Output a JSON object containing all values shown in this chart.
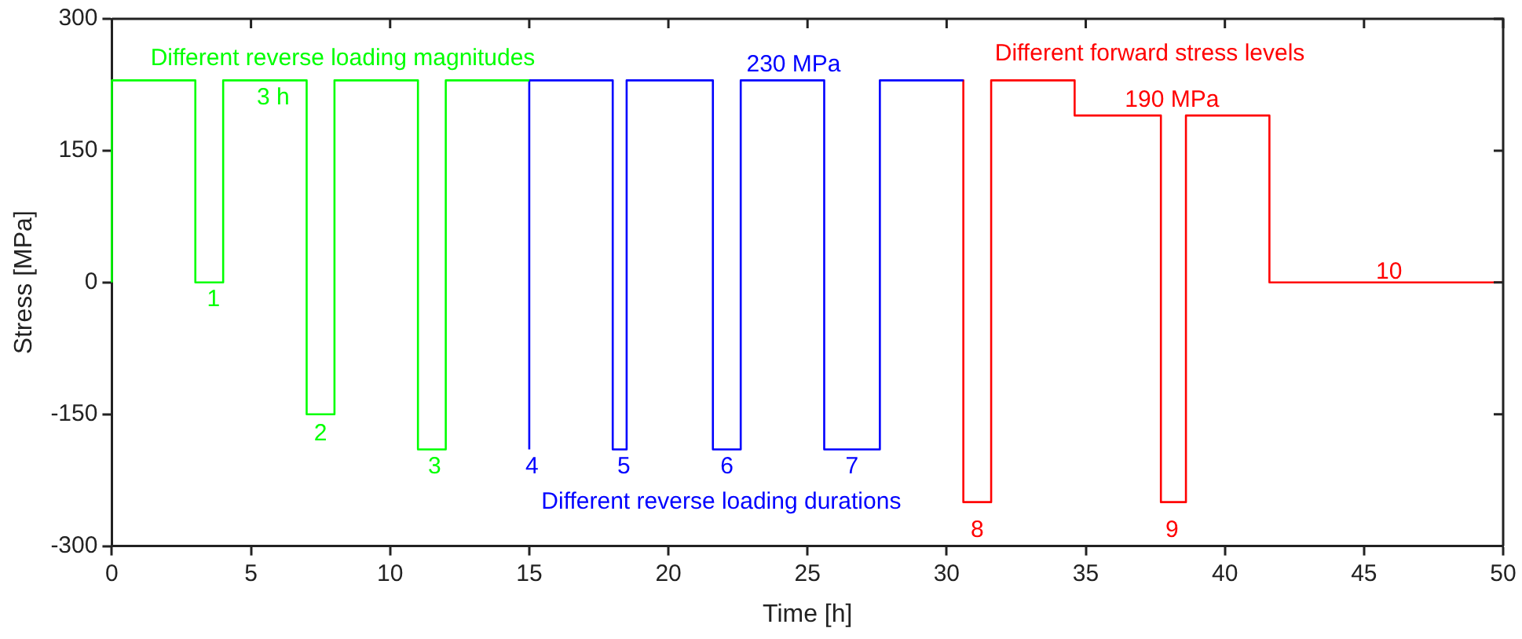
{
  "chart_data": {
    "type": "line",
    "xlabel": "Time [h]",
    "ylabel": "Stress [MPa]",
    "xlim": [
      0,
      50
    ],
    "xticks": [
      0,
      5,
      10,
      15,
      20,
      25,
      30,
      35,
      40,
      45,
      50
    ],
    "ylim": [
      -300,
      300
    ],
    "yticks": [
      -300,
      -150,
      0,
      150,
      300
    ],
    "grid": false,
    "legend": false,
    "marker": "none",
    "line_style": "solid",
    "series": [
      {
        "color": "#00ff00",
        "x": [
          0,
          0,
          3,
          3,
          4,
          4,
          7,
          7,
          8,
          8,
          11,
          11,
          12,
          12,
          15
        ],
        "values": [
          0,
          230,
          230,
          0,
          0,
          230,
          230,
          -150,
          -150,
          230,
          230,
          -190,
          -190,
          230,
          230
        ]
      },
      {
        "color": "#0000ff",
        "x": [
          15,
          15,
          18,
          18,
          18.5,
          18.5,
          21.6,
          21.6,
          22.6,
          22.6,
          25.6,
          25.6,
          27.6,
          27.6,
          30.6
        ],
        "values": [
          -190,
          230,
          230,
          -190,
          -190,
          230,
          230,
          -190,
          -190,
          230,
          230,
          -190,
          -190,
          230,
          230
        ]
      },
      {
        "color": "#ff0000",
        "x": [
          30.6,
          30.6,
          31.6,
          31.6,
          34.6,
          34.6,
          37.7,
          37.7,
          38.6,
          38.6,
          41.6,
          41.6,
          50
        ],
        "values": [
          230,
          -250,
          -250,
          230,
          230,
          190,
          190,
          -250,
          -250,
          190,
          190,
          0,
          0
        ]
      }
    ],
    "annotations": [
      "Different reverse loading magnitudes",
      "3 h",
      "1",
      "2",
      "3",
      "230 MPa",
      "4",
      "5",
      "6",
      "7",
      "Different reverse loading durations",
      "Different forward stress levels",
      "8",
      "190 MPa",
      "9",
      "10"
    ]
  }
}
